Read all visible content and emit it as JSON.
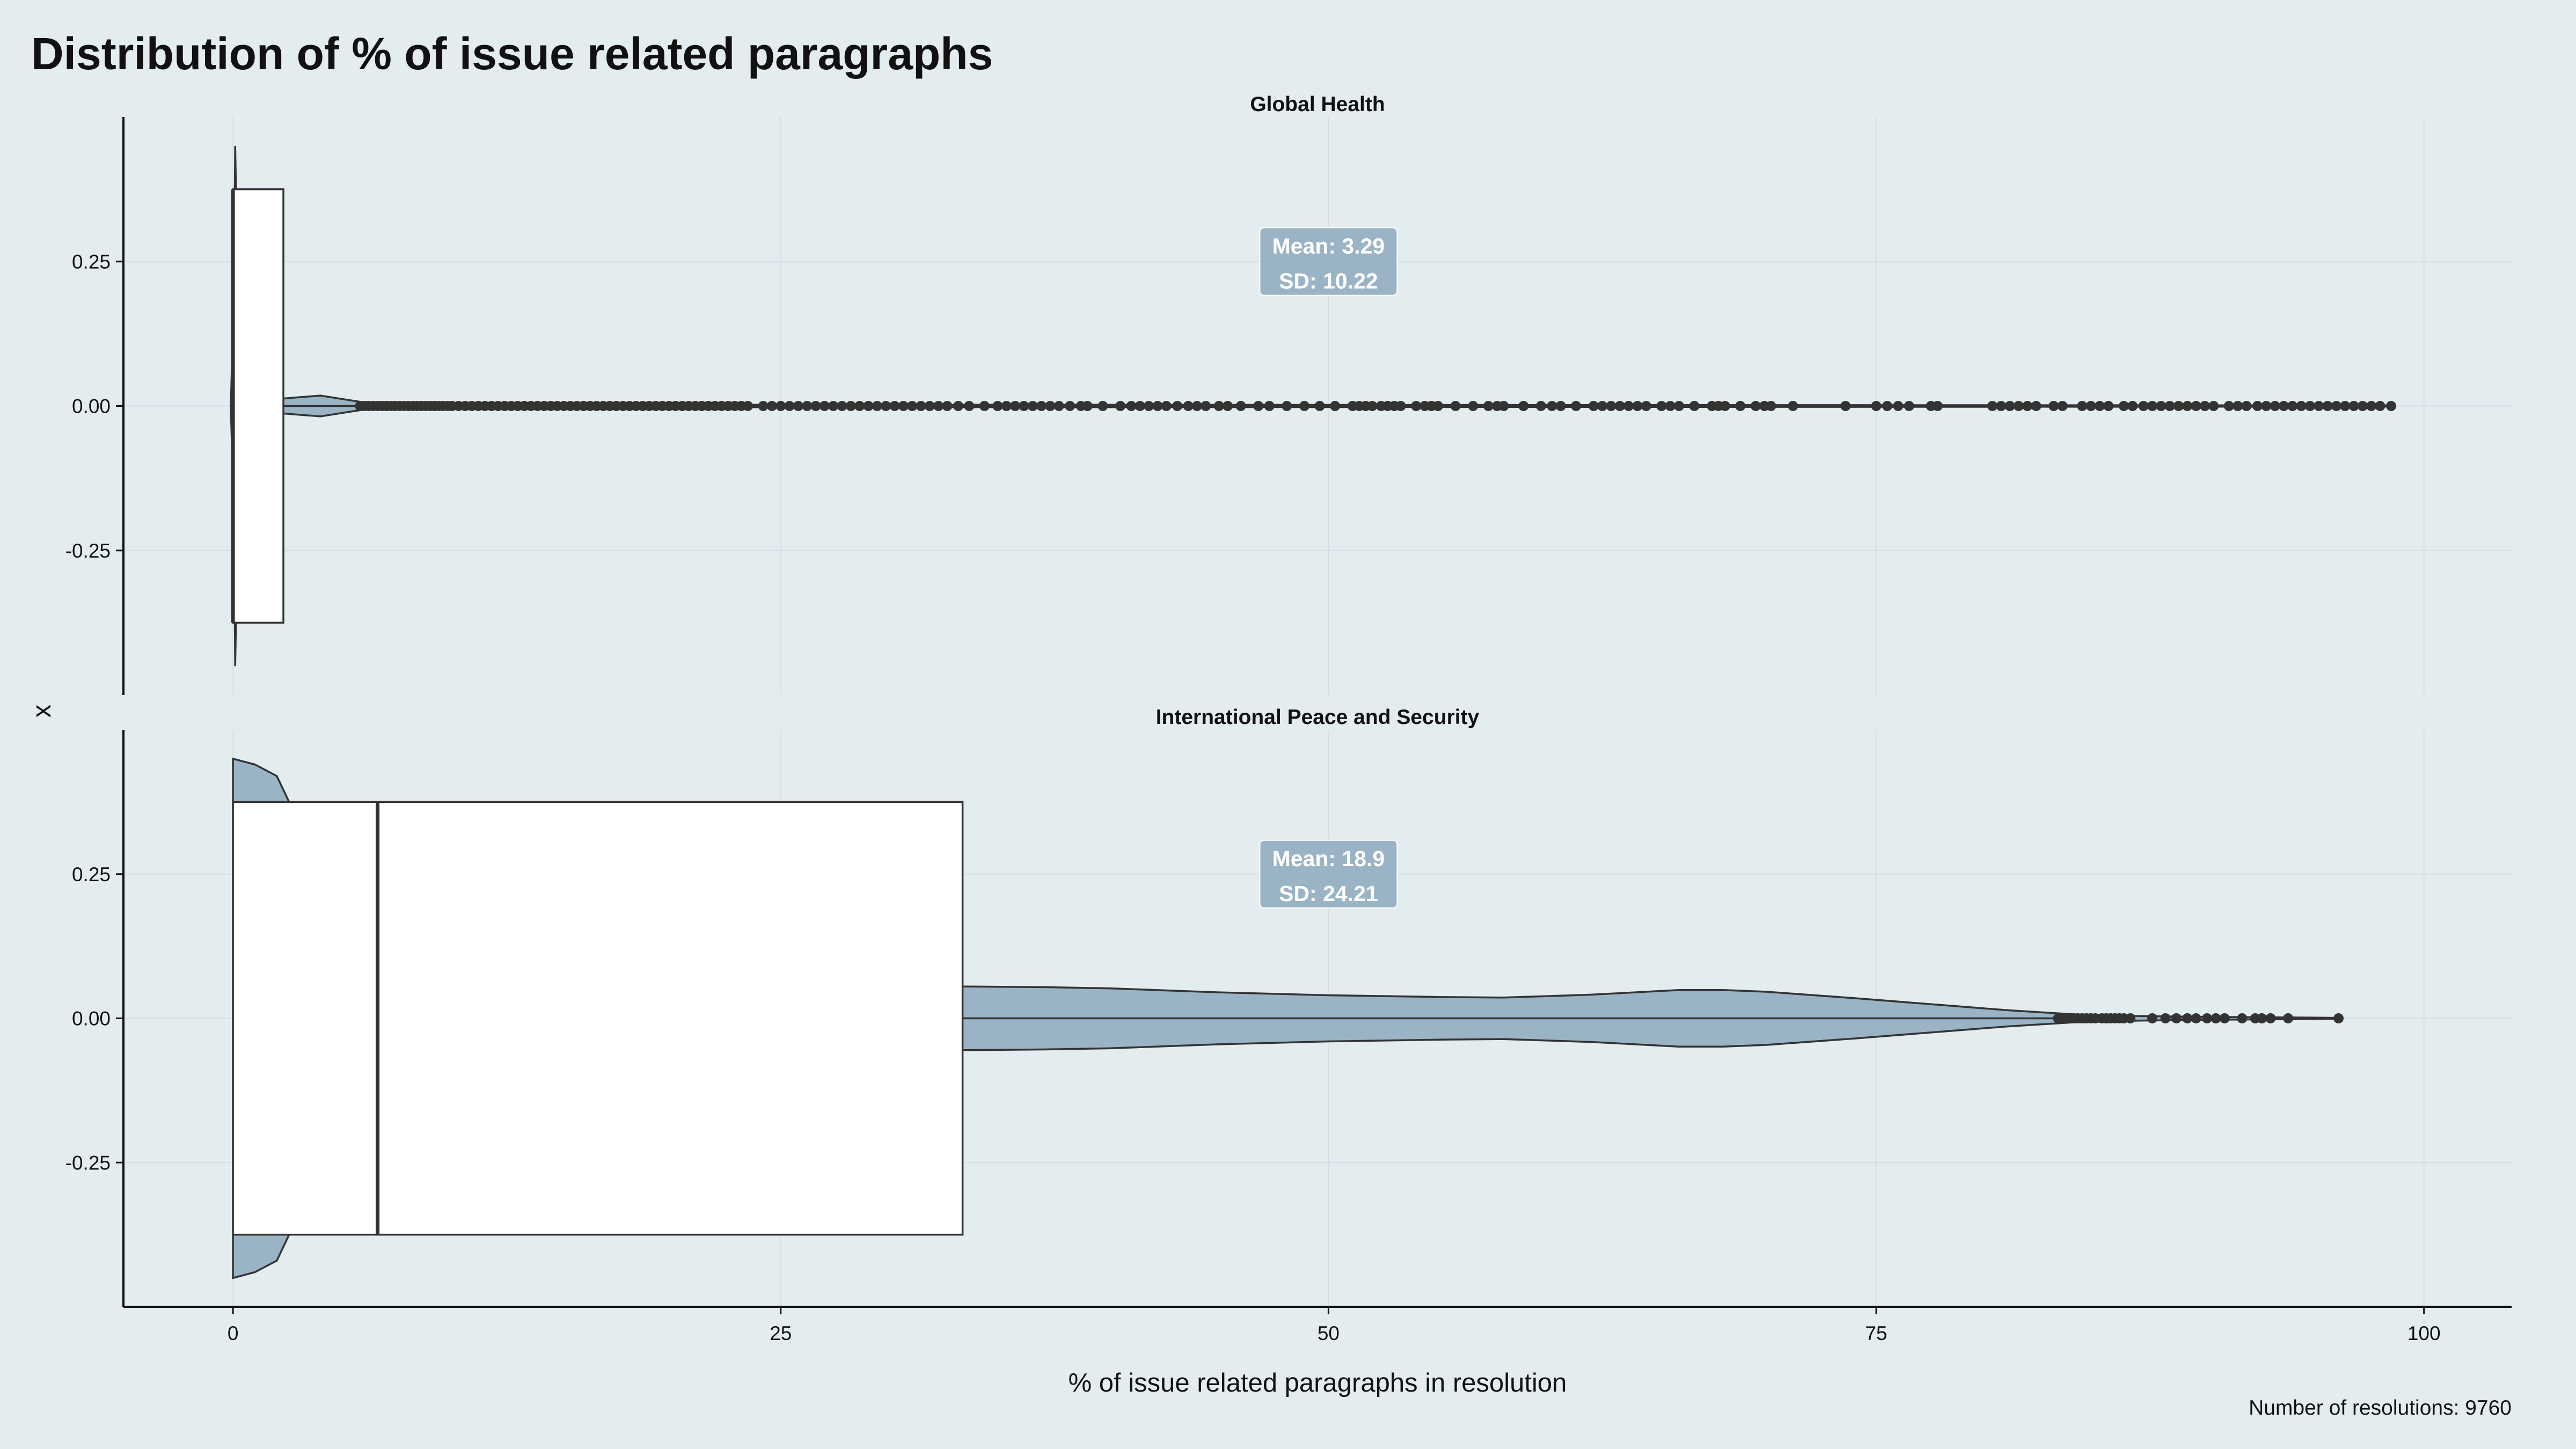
{
  "chart_data": {
    "type": "violin-box-horizontal-faceted",
    "title": "Distribution of % of issue related paragraphs",
    "xlabel": "% of issue related paragraphs in resolution",
    "ylabel": "x",
    "caption": "Number of resolutions: 9760",
    "xlim": [
      -5,
      104
    ],
    "ylim": [
      -0.5,
      0.5
    ],
    "x_ticks": [
      0,
      25,
      50,
      75,
      100
    ],
    "x_tick_labels": [
      "0",
      "25",
      "50",
      "75",
      "100"
    ],
    "y_ticks": [
      0.25,
      0.0,
      -0.25
    ],
    "y_tick_labels": [
      "0.25",
      "0.00",
      "-0.25"
    ],
    "grid": true,
    "colors": {
      "background": "#e3ecef",
      "violin_fill": "#9ab4c6",
      "box_fill": "#ffffff",
      "line": "#333333",
      "annotation_fill": "#9ab4c6",
      "grid": "#d6e0e4"
    },
    "panels": [
      {
        "name": "Global Health",
        "annotation": {
          "mean_label": "Mean: 3.29",
          "sd_label": "SD: 10.22",
          "x": 50,
          "y": 0.25
        },
        "box": {
          "min": 0,
          "q1": 0,
          "median": 0,
          "q3": 2.3,
          "whisker_end": 5.7,
          "half_height": 0.375
        },
        "violin": [
          [
            -0.1,
            0
          ],
          [
            0.05,
            0.2
          ],
          [
            0.1,
            0.45
          ],
          [
            0.2,
            0.25
          ],
          [
            0.3,
            0.06
          ],
          [
            0.5,
            0.02
          ],
          [
            1,
            0.015
          ],
          [
            2,
            0.012
          ],
          [
            3,
            0.015
          ],
          [
            4,
            0.018
          ],
          [
            5,
            0.012
          ],
          [
            6,
            0.006
          ],
          [
            8,
            0.004
          ],
          [
            12,
            0.003
          ],
          [
            20,
            0.002
          ],
          [
            40,
            0.002
          ],
          [
            98.5,
            0.001
          ]
        ],
        "outliers": [
          5.8,
          6,
          6.2,
          6.4,
          6.6,
          6.8,
          7,
          7.2,
          7.4,
          7.6,
          7.8,
          8,
          8.2,
          8.4,
          8.6,
          8.8,
          9,
          9.2,
          9.4,
          9.6,
          9.8,
          10,
          10.3,
          10.6,
          10.9,
          11.2,
          11.5,
          11.8,
          12.1,
          12.4,
          12.7,
          13,
          13.3,
          13.6,
          13.9,
          14.2,
          14.5,
          14.8,
          15.1,
          15.4,
          15.7,
          16,
          16.3,
          16.6,
          16.9,
          17.2,
          17.5,
          17.8,
          18.1,
          18.4,
          18.7,
          19,
          19.3,
          19.6,
          19.9,
          20.2,
          20.5,
          20.8,
          21.1,
          21.4,
          21.7,
          22,
          22.3,
          22.6,
          22.9,
          23.2,
          23.5,
          24.2,
          24.6,
          25,
          25.4,
          25.8,
          26.2,
          26.6,
          27,
          27.4,
          27.8,
          28.2,
          28.6,
          29,
          29.4,
          29.8,
          30.2,
          30.6,
          31,
          31.4,
          31.8,
          32.2,
          32.6,
          33.1,
          33.6,
          34.3,
          34.9,
          35.3,
          35.7,
          36.1,
          36.5,
          36.9,
          37.3,
          37.7,
          38.2,
          38.7,
          39,
          39.7,
          40.5,
          41,
          41.4,
          41.8,
          42.2,
          42.6,
          43.1,
          43.6,
          44,
          44.4,
          45,
          45.4,
          46,
          46.8,
          47.3,
          48.1,
          48.9,
          49.6,
          50.3,
          51.1,
          51.4,
          51.7,
          52,
          52.4,
          52.7,
          53,
          53.3,
          54,
          54.4,
          54.7,
          55,
          55.8,
          56.6,
          57.3,
          57.7,
          58,
          58.9,
          59.7,
          60.2,
          60.6,
          61.3,
          62.1,
          62.5,
          62.9,
          63.3,
          63.7,
          64.1,
          64.5,
          65.2,
          65.6,
          66,
          66.7,
          67.5,
          67.8,
          68.1,
          68.8,
          69.5,
          69.9,
          70.2,
          71.2,
          73.6,
          75,
          75.5,
          76,
          76.5,
          77.5,
          77.8,
          80.3,
          80.7,
          81.1,
          81.5,
          81.9,
          82.3,
          83.1,
          83.5,
          84.4,
          84.8,
          85.2,
          85.6,
          86.3,
          86.7,
          87.2,
          87.6,
          88,
          88.4,
          88.8,
          89.2,
          89.6,
          90,
          90.4,
          91.1,
          91.5,
          91.9,
          92.4,
          92.8,
          93.2,
          93.6,
          94,
          94.4,
          94.8,
          95.2,
          95.6,
          96,
          96.4,
          96.8,
          97.2,
          97.6,
          98,
          98.5
        ]
      },
      {
        "name": "International Peace and Security",
        "annotation": {
          "mean_label": "Mean: 18.9",
          "sd_label": "SD: 24.21",
          "x": 50,
          "y": 0.25
        },
        "box": {
          "min": 0,
          "q1": 0,
          "median": 6.6,
          "q3": 33.3,
          "whisker_end": 83.3,
          "half_height": 0.375
        },
        "violin": [
          [
            0,
            0.45
          ],
          [
            1,
            0.44
          ],
          [
            2,
            0.42
          ],
          [
            3,
            0.34
          ],
          [
            4,
            0.26
          ],
          [
            5,
            0.2
          ],
          [
            6,
            0.16
          ],
          [
            8,
            0.11
          ],
          [
            10,
            0.085
          ],
          [
            12,
            0.075
          ],
          [
            15,
            0.065
          ],
          [
            20,
            0.06
          ],
          [
            25,
            0.058
          ],
          [
            30,
            0.056
          ],
          [
            34,
            0.055
          ],
          [
            37,
            0.054
          ],
          [
            40,
            0.052
          ],
          [
            45,
            0.045
          ],
          [
            50,
            0.04
          ],
          [
            55,
            0.037
          ],
          [
            58,
            0.036
          ],
          [
            62,
            0.041
          ],
          [
            66,
            0.049
          ],
          [
            68,
            0.049
          ],
          [
            70,
            0.046
          ],
          [
            74,
            0.035
          ],
          [
            78,
            0.023
          ],
          [
            81,
            0.014
          ],
          [
            84,
            0.007
          ],
          [
            87,
            0.004
          ],
          [
            90,
            0.0025
          ],
          [
            94,
            0.0015
          ],
          [
            96,
            0.0008
          ]
        ],
        "outliers": [
          83.3,
          83.6,
          83.8,
          84,
          84.2,
          84.4,
          84.6,
          84.8,
          85,
          85.3,
          85.5,
          85.7,
          85.9,
          86.1,
          86.3,
          86.6,
          87.6,
          88.2,
          88.7,
          89.2,
          89.6,
          90.1,
          90.5,
          90.9,
          91.7,
          92.3,
          92.6,
          93,
          93.8,
          96.1
        ]
      }
    ]
  }
}
